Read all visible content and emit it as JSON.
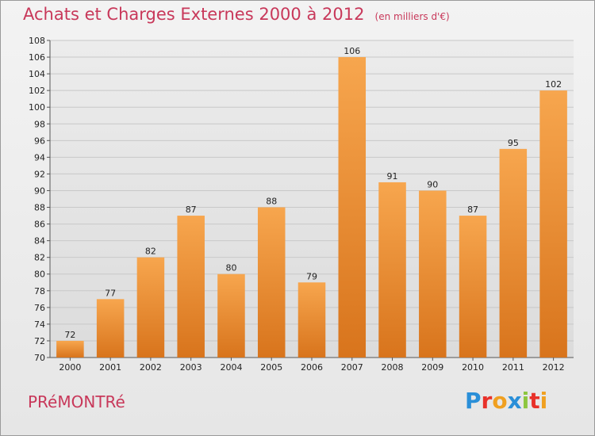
{
  "header": {
    "title": "Achats et Charges Externes 2000 à 2012",
    "subtitle": "(en milliers d'€)"
  },
  "footer": {
    "commune": "PRéMONTRé",
    "logo": {
      "letters": [
        "P",
        "r",
        "o",
        "x",
        "i",
        "t",
        "i"
      ],
      "colors": [
        "#2a8fd8",
        "#e8312a",
        "#f0a020",
        "#2a8fd8",
        "#8cc63f",
        "#e8312a",
        "#f0a020"
      ]
    }
  },
  "colors": {
    "bar_light": "#f7a64e",
    "bar_dark": "#d8741c",
    "grid": "#c8c8c8",
    "title": "#c8385a"
  },
  "chart_data": {
    "type": "bar",
    "title": "Achats et Charges Externes 2000 à 2012",
    "subtitle": "(en milliers d'€)",
    "xlabel": "",
    "ylabel": "",
    "categories": [
      "2000",
      "2001",
      "2002",
      "2003",
      "2004",
      "2005",
      "2006",
      "2007",
      "2008",
      "2009",
      "2010",
      "2011",
      "2012"
    ],
    "values": [
      72,
      77,
      82,
      87,
      80,
      88,
      79,
      106,
      91,
      90,
      87,
      95,
      102
    ],
    "ylim": [
      70,
      108
    ],
    "ytick_step": 2,
    "grid": true
  }
}
